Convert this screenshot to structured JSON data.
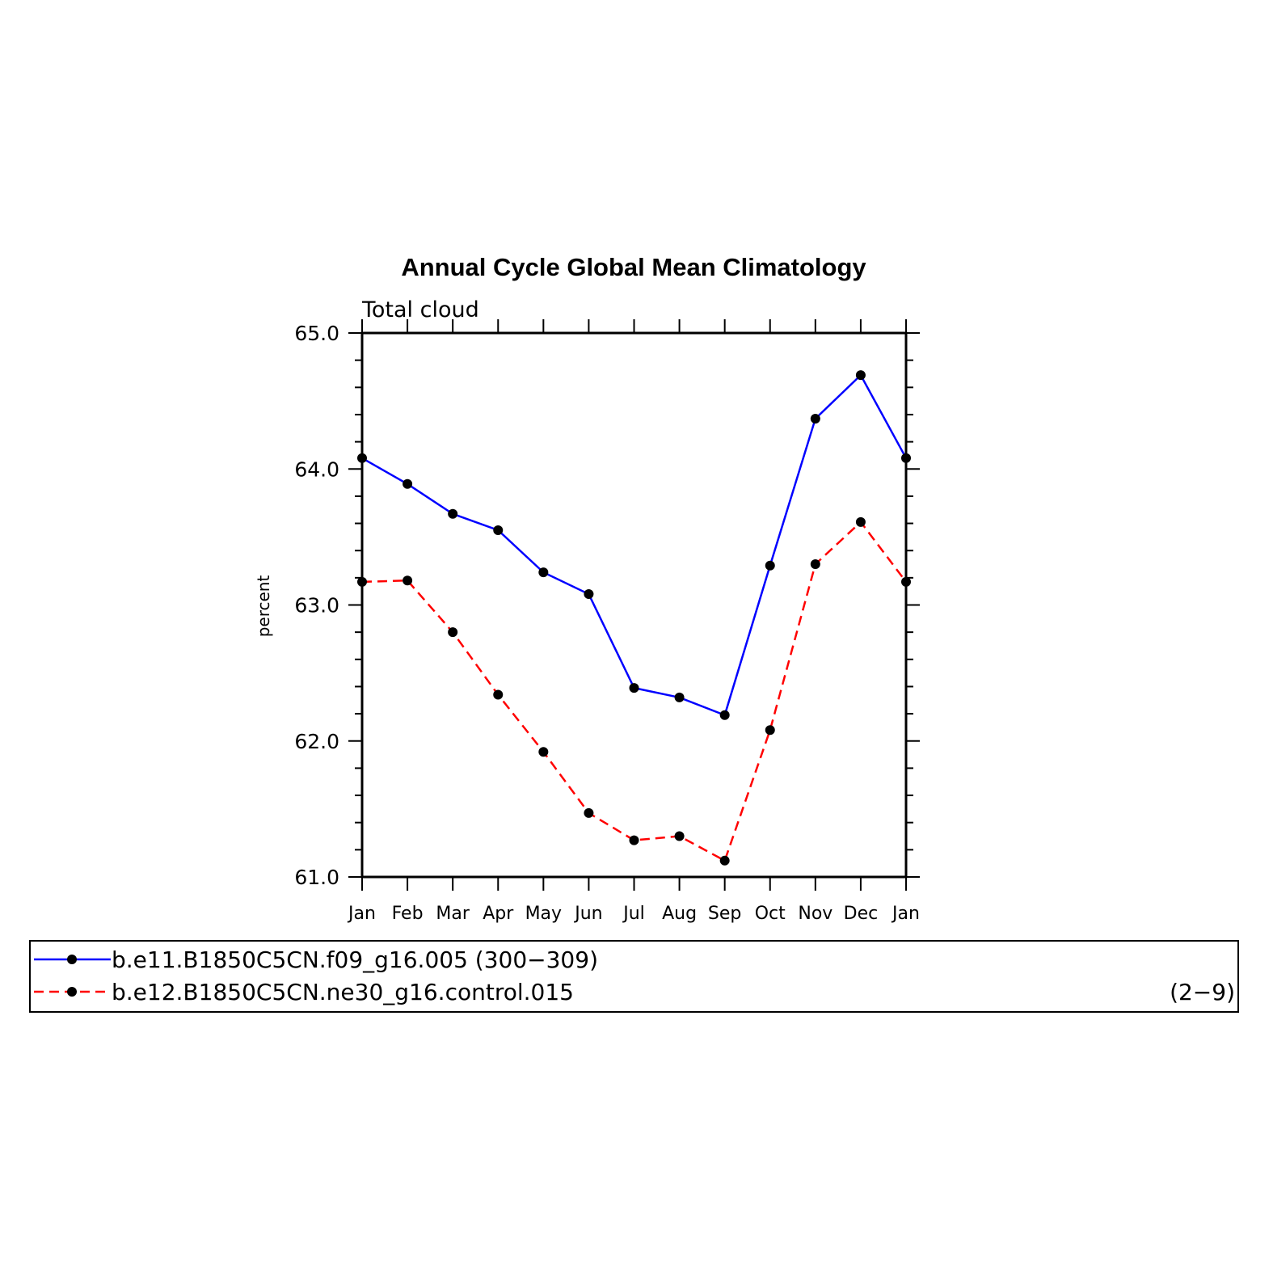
{
  "chart_data": {
    "type": "line",
    "title": "Annual Cycle Global Mean Climatology",
    "subtitle": "Total cloud",
    "xlabel": "",
    "ylabel": "percent",
    "categories": [
      "Jan",
      "Feb",
      "Mar",
      "Apr",
      "May",
      "Jun",
      "Jul",
      "Aug",
      "Sep",
      "Oct",
      "Nov",
      "Dec",
      "Jan"
    ],
    "ylim": [
      61.0,
      65.0
    ],
    "yticks": [
      "61.0",
      "62.0",
      "63.0",
      "64.0",
      "65.0"
    ],
    "grid": false,
    "legend_position": "bottom",
    "series": [
      {
        "name": "b.e11.B1850C5CN.f09_g16.005",
        "years": "(300−309)",
        "color": "#0000ff",
        "line_style": "solid",
        "marker": "circle",
        "values": [
          64.08,
          63.89,
          63.67,
          63.55,
          63.24,
          63.08,
          62.39,
          62.32,
          62.19,
          63.29,
          64.37,
          64.69,
          64.08
        ]
      },
      {
        "name": "b.e12.B1850C5CN.ne30_g16.control.015",
        "years": "(2−9)",
        "color": "#ff0000",
        "line_style": "dashed",
        "marker": "circle",
        "values": [
          63.17,
          63.18,
          62.8,
          62.34,
          61.92,
          61.47,
          61.27,
          61.3,
          61.12,
          62.08,
          63.3,
          63.61,
          63.17
        ]
      }
    ]
  }
}
